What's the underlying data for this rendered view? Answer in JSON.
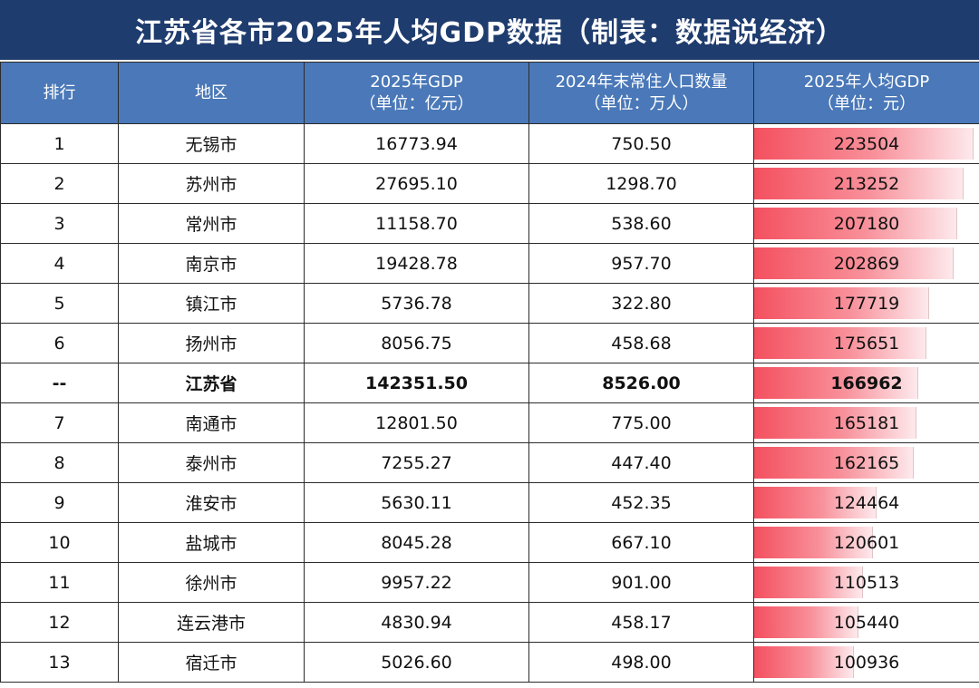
{
  "title": "江苏省各市2025年人均GDP数据（制表：数据说经济）",
  "chart_data": {
    "type": "table",
    "title": "江苏省各市2025年人均GDP数据（制表：数据说经济）",
    "columns": [
      {
        "label": "排行"
      },
      {
        "label": "地区"
      },
      {
        "label": "2025年GDP",
        "unit": "（单位：亿元）"
      },
      {
        "label": "2024年末常住人口数量",
        "unit": "（单位：万人）"
      },
      {
        "label": "2025年人均GDP",
        "unit": "（单位：元）"
      }
    ],
    "bar_max": 230000,
    "bar_colors": {
      "start": "#f4505f",
      "end": "#fde9ec"
    },
    "rows": [
      {
        "rank": "1",
        "region": "无锡市",
        "gdp": "16773.94",
        "population": "750.50",
        "per_capita": "223504",
        "per_capita_value": 223504
      },
      {
        "rank": "2",
        "region": "苏州市",
        "gdp": "27695.10",
        "population": "1298.70",
        "per_capita": "213252",
        "per_capita_value": 213252
      },
      {
        "rank": "3",
        "region": "常州市",
        "gdp": "11158.70",
        "population": "538.60",
        "per_capita": "207180",
        "per_capita_value": 207180
      },
      {
        "rank": "4",
        "region": "南京市",
        "gdp": "19428.78",
        "population": "957.70",
        "per_capita": "202869",
        "per_capita_value": 202869
      },
      {
        "rank": "5",
        "region": "镇江市",
        "gdp": "5736.78",
        "population": "322.80",
        "per_capita": "177719",
        "per_capita_value": 177719
      },
      {
        "rank": "6",
        "region": "扬州市",
        "gdp": "8056.75",
        "population": "458.68",
        "per_capita": "175651",
        "per_capita_value": 175651
      },
      {
        "rank": "--",
        "region": "江苏省",
        "gdp": "142351.50",
        "population": "8526.00",
        "per_capita": "166962",
        "per_capita_value": 166962,
        "highlight": true
      },
      {
        "rank": "7",
        "region": "南通市",
        "gdp": "12801.50",
        "population": "775.00",
        "per_capita": "165181",
        "per_capita_value": 165181
      },
      {
        "rank": "8",
        "region": "泰州市",
        "gdp": "7255.27",
        "population": "447.40",
        "per_capita": "162165",
        "per_capita_value": 162165
      },
      {
        "rank": "9",
        "region": "淮安市",
        "gdp": "5630.11",
        "population": "452.35",
        "per_capita": "124464",
        "per_capita_value": 124464
      },
      {
        "rank": "10",
        "region": "盐城市",
        "gdp": "8045.28",
        "population": "667.10",
        "per_capita": "120601",
        "per_capita_value": 120601
      },
      {
        "rank": "11",
        "region": "徐州市",
        "gdp": "9957.22",
        "population": "901.00",
        "per_capita": "110513",
        "per_capita_value": 110513
      },
      {
        "rank": "12",
        "region": "连云港市",
        "gdp": "4830.94",
        "population": "458.17",
        "per_capita": "105440",
        "per_capita_value": 105440
      },
      {
        "rank": "13",
        "region": "宿迁市",
        "gdp": "5026.60",
        "population": "498.00",
        "per_capita": "100936",
        "per_capita_value": 100936
      }
    ]
  }
}
